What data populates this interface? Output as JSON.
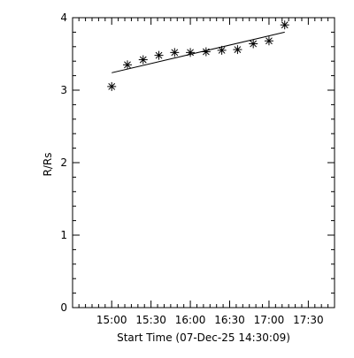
{
  "chart_data": {
    "type": "scatter",
    "title": "",
    "xlabel": "Start Time (07-Dec-25 14:30:09)",
    "ylabel": "R/Rs",
    "xlim": [
      "14:30:09",
      "17:50"
    ],
    "ylim": [
      0,
      4
    ],
    "x_ticks": [
      "15:00",
      "15:30",
      "16:00",
      "16:30",
      "17:00",
      "17:30"
    ],
    "y_ticks": [
      "0",
      "1",
      "2",
      "3",
      "4"
    ],
    "grid": false,
    "marker": "asterisk",
    "color": "#000000",
    "series": [
      {
        "x": [
          "15:00",
          "15:12",
          "15:24",
          "15:36",
          "15:48",
          "16:00",
          "16:12",
          "16:24",
          "16:36",
          "16:48",
          "17:00",
          "17:12"
        ],
        "y": [
          3.05,
          3.35,
          3.42,
          3.48,
          3.52,
          3.52,
          3.53,
          3.55,
          3.56,
          3.64,
          3.68,
          3.9
        ]
      }
    ],
    "fit_line": {
      "x": [
        "15:00",
        "17:12"
      ],
      "y": [
        3.24,
        3.8
      ]
    }
  }
}
